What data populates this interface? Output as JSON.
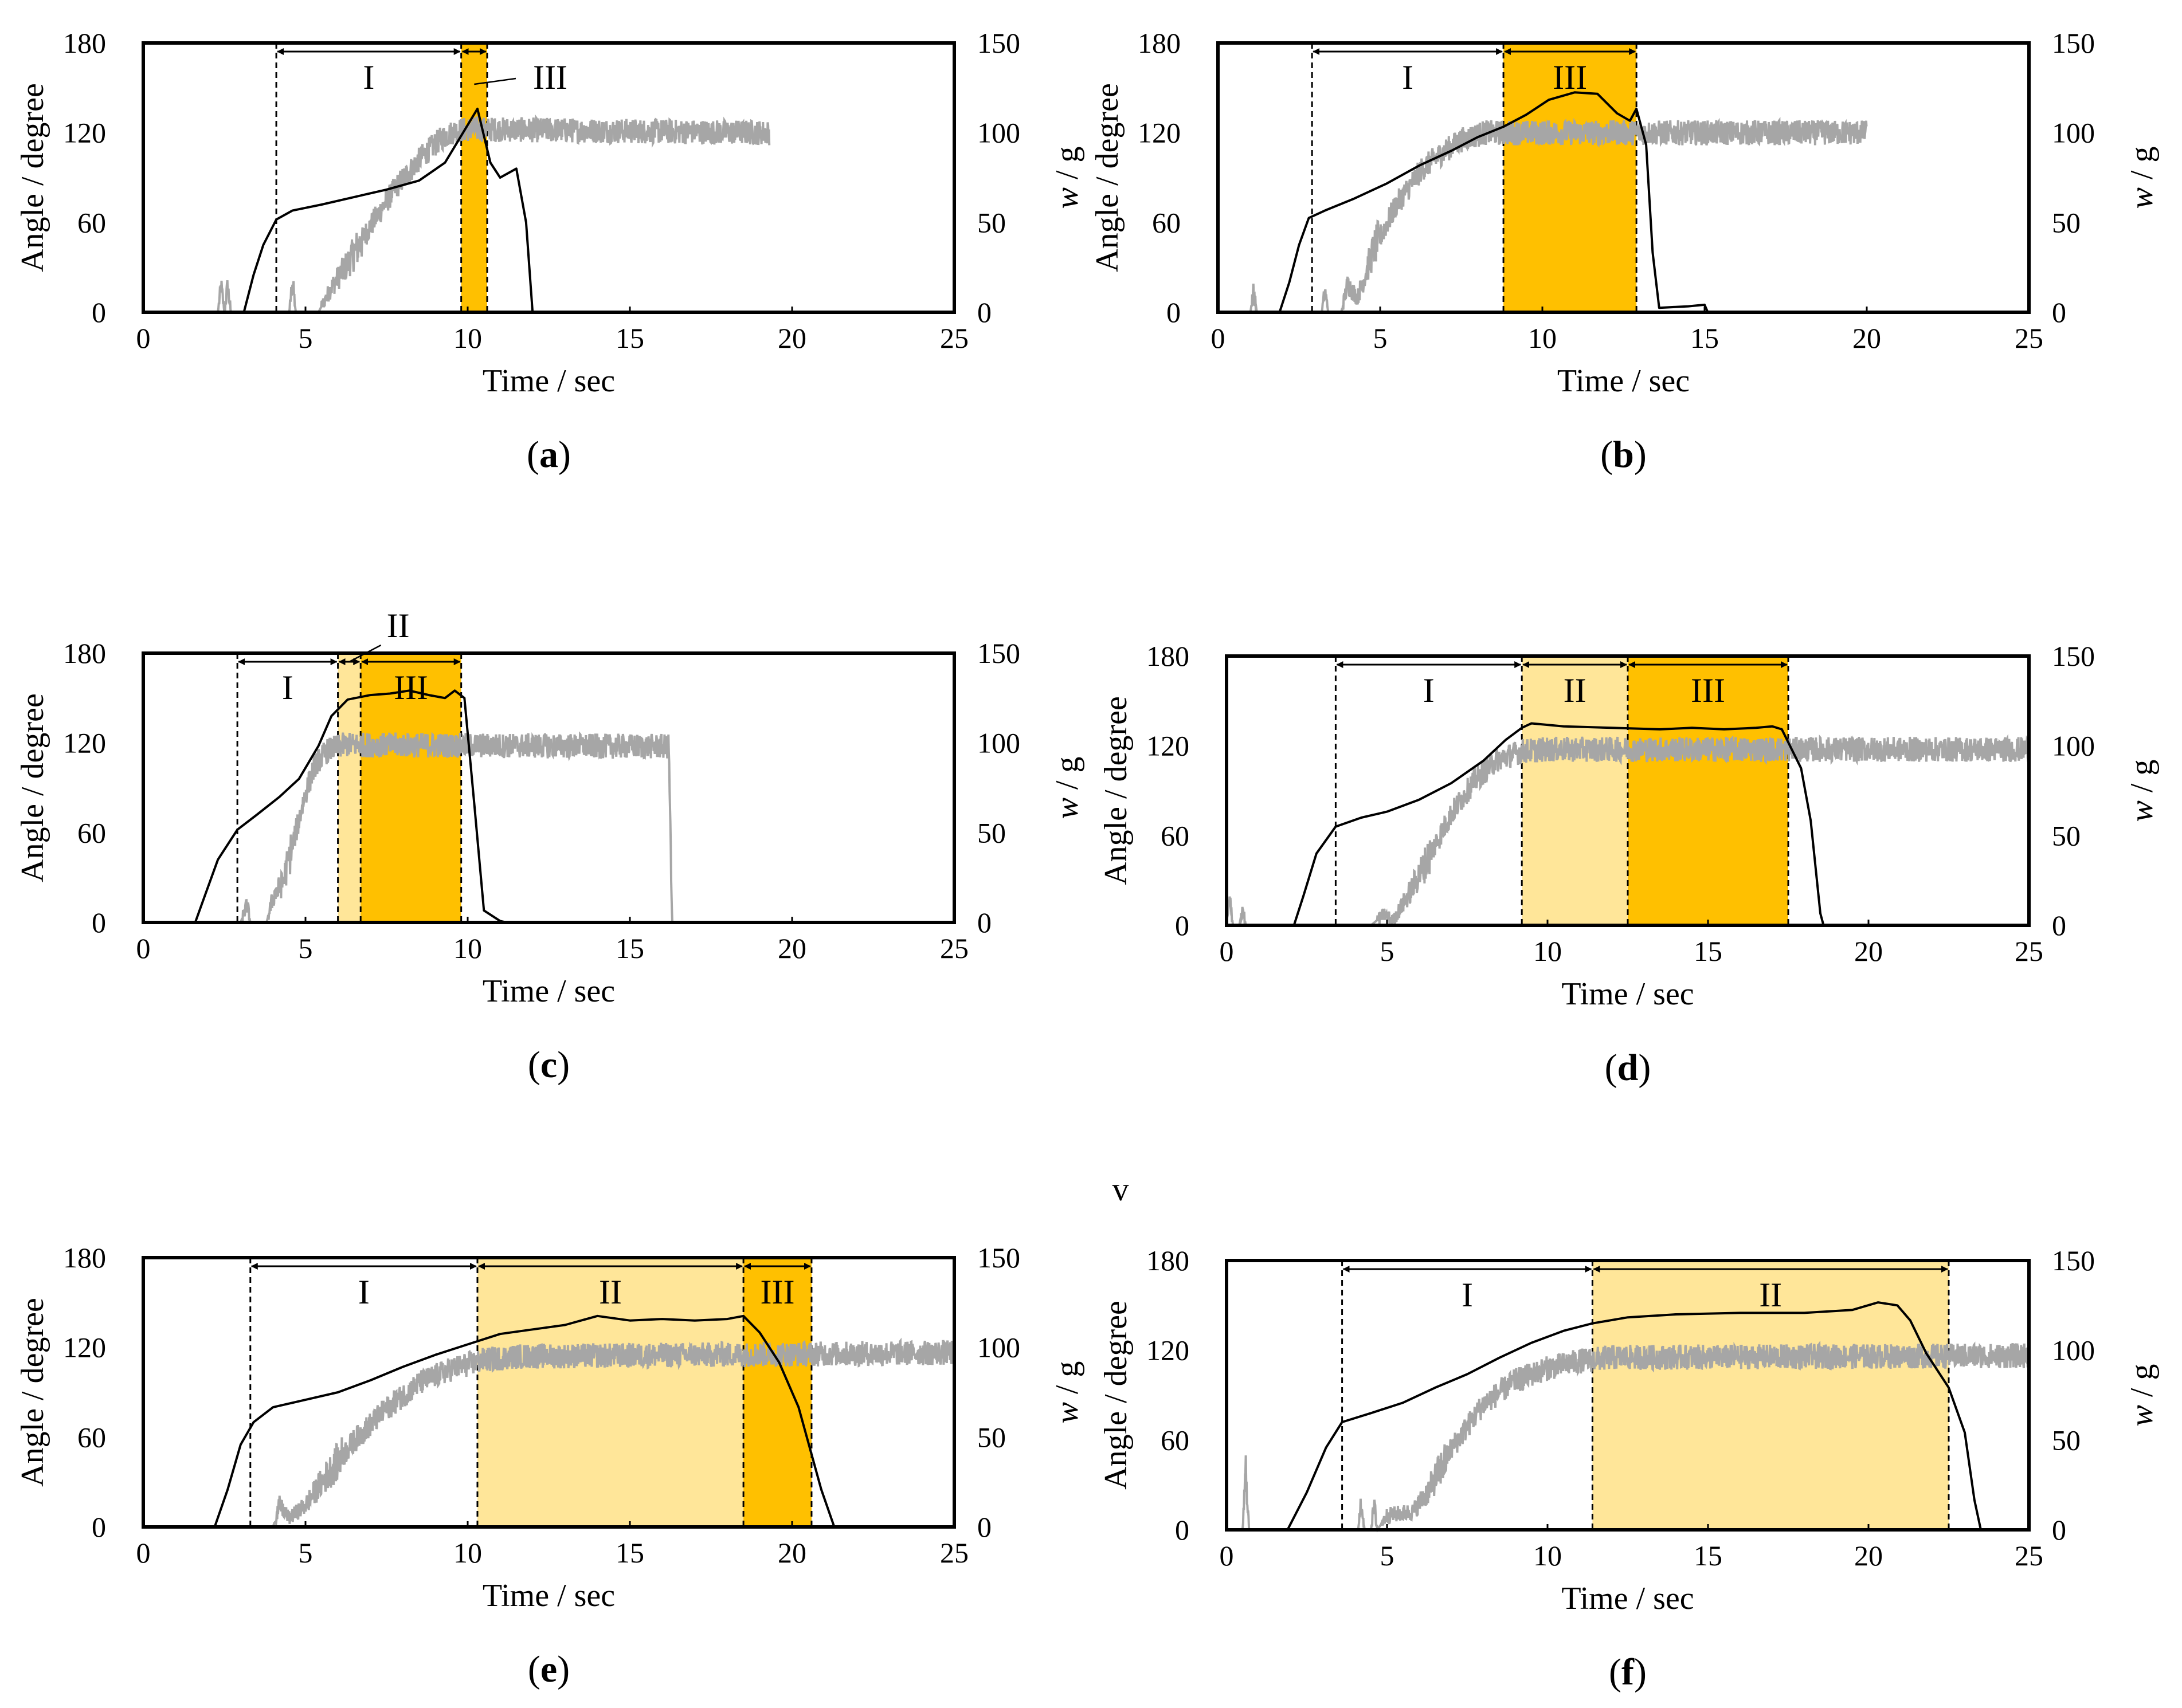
{
  "figure": {
    "center_label": "v",
    "colors": {
      "angle_line": "#000000",
      "weight_line": "#a6a6a6",
      "phase_II_fill": "#ffe699",
      "phase_III_fill": "#ffc000",
      "axis": "#000000"
    }
  },
  "chart_data": [
    {
      "panel": "(a)",
      "type": "line",
      "xlabel": "Time / sec",
      "ylabel_left": "Angle / degree",
      "ylabel_right": "w / g",
      "xlim": [
        0,
        25
      ],
      "ylim_left": [
        0,
        180
      ],
      "ylim_right": [
        0,
        150
      ],
      "xticks": [
        0,
        5,
        10,
        15,
        20,
        25
      ],
      "yticks_left": [
        0,
        60,
        120,
        180
      ],
      "yticks_right": [
        0,
        50,
        100,
        150
      ],
      "phases": [
        {
          "label": "I",
          "start": 4.1,
          "end": 9.8,
          "shaded": false
        },
        {
          "label": "III",
          "start": 9.8,
          "end": 10.6,
          "shaded": true,
          "level": "III"
        }
      ],
      "angle_series": [
        [
          0,
          0
        ],
        [
          3.1,
          0
        ],
        [
          3.4,
          25
        ],
        [
          3.7,
          45
        ],
        [
          4.1,
          62
        ],
        [
          4.6,
          68
        ],
        [
          5.5,
          72
        ],
        [
          6.5,
          77
        ],
        [
          7.5,
          82
        ],
        [
          8.5,
          88
        ],
        [
          9.3,
          100
        ],
        [
          9.8,
          118
        ],
        [
          10.3,
          136
        ],
        [
          10.7,
          100
        ],
        [
          11.0,
          90
        ],
        [
          11.5,
          96
        ],
        [
          11.8,
          60
        ],
        [
          12.0,
          0
        ],
        [
          25,
          0
        ]
      ],
      "angle_end": 12.0,
      "weight_series": [
        [
          0,
          0
        ],
        [
          2.3,
          0
        ],
        [
          2.4,
          15
        ],
        [
          2.5,
          0
        ],
        [
          2.6,
          15
        ],
        [
          2.7,
          0
        ],
        [
          4.5,
          0
        ],
        [
          4.6,
          18
        ],
        [
          4.7,
          0
        ],
        [
          5.4,
          0
        ],
        [
          5.8,
          14
        ],
        [
          6.3,
          27
        ],
        [
          7.0,
          48
        ],
        [
          7.8,
          70
        ],
        [
          8.6,
          87
        ],
        [
          9.2,
          97
        ],
        [
          9.6,
          101
        ],
        [
          10,
          102
        ],
        [
          19.3,
          100
        ]
      ],
      "weight_end": 19.3
    },
    {
      "panel": "(b)",
      "type": "line",
      "xlabel": "Time / sec",
      "ylabel_left": "Angle / degree",
      "ylabel_right": "w / g",
      "xlim": [
        0,
        25
      ],
      "ylim_left": [
        0,
        180
      ],
      "ylim_right": [
        0,
        150
      ],
      "xticks": [
        0,
        5,
        10,
        15,
        20,
        25
      ],
      "yticks_left": [
        0,
        60,
        120,
        180
      ],
      "yticks_right": [
        0,
        50,
        100,
        150
      ],
      "phases": [
        {
          "label": "I",
          "start": 2.9,
          "end": 8.8,
          "shaded": false
        },
        {
          "label": "III",
          "start": 8.8,
          "end": 12.9,
          "shaded": true,
          "level": "III"
        }
      ],
      "angle_series": [
        [
          0,
          0
        ],
        [
          1.9,
          0
        ],
        [
          2.2,
          20
        ],
        [
          2.5,
          45
        ],
        [
          2.8,
          63
        ],
        [
          3.3,
          68
        ],
        [
          4.2,
          76
        ],
        [
          5.2,
          86
        ],
        [
          6.2,
          98
        ],
        [
          7.2,
          108
        ],
        [
          8.0,
          117
        ],
        [
          8.8,
          124
        ],
        [
          9.5,
          132
        ],
        [
          10.2,
          142
        ],
        [
          11.0,
          147
        ],
        [
          11.7,
          146
        ],
        [
          12.3,
          133
        ],
        [
          12.7,
          128
        ],
        [
          12.9,
          136
        ],
        [
          13.2,
          112
        ],
        [
          13.4,
          40
        ],
        [
          13.6,
          3
        ],
        [
          14.5,
          4
        ],
        [
          15.0,
          5
        ],
        [
          15.1,
          0
        ],
        [
          25,
          0
        ]
      ],
      "angle_end": 15.1,
      "weight_series": [
        [
          0,
          0
        ],
        [
          1.0,
          0
        ],
        [
          1.1,
          12
        ],
        [
          1.2,
          0
        ],
        [
          3.2,
          0
        ],
        [
          3.3,
          12
        ],
        [
          3.4,
          0
        ],
        [
          3.8,
          0
        ],
        [
          4.0,
          16
        ],
        [
          4.3,
          8
        ],
        [
          4.8,
          35
        ],
        [
          5.5,
          60
        ],
        [
          6.3,
          80
        ],
        [
          7.0,
          90
        ],
        [
          7.5,
          96
        ],
        [
          8.2,
          100
        ],
        [
          20,
          100
        ]
      ],
      "weight_end": 20.0
    },
    {
      "panel": "(c)",
      "type": "line",
      "xlabel": "Time / sec",
      "ylabel_left": "Angle / degree",
      "ylabel_right": "w / g",
      "xlim": [
        0,
        25
      ],
      "ylim_left": [
        0,
        180
      ],
      "ylim_right": [
        0,
        150
      ],
      "xticks": [
        0,
        5,
        10,
        15,
        20,
        25
      ],
      "yticks_left": [
        0,
        60,
        120,
        180
      ],
      "yticks_right": [
        0,
        50,
        100,
        150
      ],
      "phases": [
        {
          "label": "I",
          "start": 2.9,
          "end": 6.0,
          "shaded": false
        },
        {
          "label": "II",
          "start": 6.0,
          "end": 6.7,
          "shaded": true,
          "level": "II"
        },
        {
          "label": "III",
          "start": 6.7,
          "end": 9.8,
          "shaded": true,
          "level": "III"
        }
      ],
      "angle_series": [
        [
          0,
          0
        ],
        [
          1.6,
          0
        ],
        [
          1.9,
          18
        ],
        [
          2.3,
          42
        ],
        [
          2.9,
          62
        ],
        [
          3.5,
          72
        ],
        [
          4.2,
          84
        ],
        [
          4.8,
          96
        ],
        [
          5.4,
          118
        ],
        [
          5.8,
          138
        ],
        [
          6.3,
          149
        ],
        [
          7.0,
          152
        ],
        [
          7.6,
          153
        ],
        [
          8.2,
          155
        ],
        [
          8.8,
          152
        ],
        [
          9.3,
          150
        ],
        [
          9.6,
          155
        ],
        [
          9.9,
          150
        ],
        [
          10.2,
          80
        ],
        [
          10.5,
          8
        ],
        [
          11.0,
          1
        ],
        [
          11.2,
          0
        ],
        [
          25,
          0
        ]
      ],
      "angle_end": 11.2,
      "weight_series": [
        [
          0,
          0
        ],
        [
          3.0,
          0
        ],
        [
          3.2,
          10
        ],
        [
          3.3,
          0
        ],
        [
          3.8,
          0
        ],
        [
          4.0,
          14
        ],
        [
          4.3,
          22
        ],
        [
          4.7,
          50
        ],
        [
          5.0,
          72
        ],
        [
          5.3,
          88
        ],
        [
          5.7,
          96
        ],
        [
          6.2,
          99
        ],
        [
          16.2,
          98
        ],
        [
          16.3,
          0
        ],
        [
          17.5,
          0
        ]
      ],
      "weight_end": 17.5
    },
    {
      "panel": "(d)",
      "type": "line",
      "xlabel": "Time / sec",
      "ylabel_left": "Angle / degree",
      "ylabel_right": "w / g",
      "xlim": [
        0,
        25
      ],
      "ylim_left": [
        0,
        180
      ],
      "ylim_right": [
        0,
        150
      ],
      "xticks": [
        0,
        5,
        10,
        15,
        20,
        25
      ],
      "yticks_left": [
        0,
        60,
        120,
        180
      ],
      "yticks_right": [
        0,
        50,
        100,
        150
      ],
      "phases": [
        {
          "label": "I",
          "start": 3.4,
          "end": 9.2,
          "shaded": false
        },
        {
          "label": "II",
          "start": 9.2,
          "end": 12.5,
          "shaded": true,
          "level": "II"
        },
        {
          "label": "III",
          "start": 12.5,
          "end": 17.5,
          "shaded": true,
          "level": "III"
        }
      ],
      "angle_series": [
        [
          0,
          0
        ],
        [
          2.1,
          0
        ],
        [
          2.4,
          20
        ],
        [
          2.8,
          48
        ],
        [
          3.4,
          66
        ],
        [
          4.2,
          72
        ],
        [
          5.0,
          76
        ],
        [
          6.0,
          84
        ],
        [
          7.0,
          95
        ],
        [
          8.0,
          110
        ],
        [
          8.7,
          124
        ],
        [
          9.2,
          132
        ],
        [
          9.5,
          135
        ],
        [
          10.5,
          133
        ],
        [
          12,
          132
        ],
        [
          13.5,
          131
        ],
        [
          14.5,
          132
        ],
        [
          15.5,
          131
        ],
        [
          16.5,
          132
        ],
        [
          17.0,
          133
        ],
        [
          17.3,
          131
        ],
        [
          17.6,
          118
        ],
        [
          17.9,
          105
        ],
        [
          18.2,
          70
        ],
        [
          18.5,
          8
        ],
        [
          18.6,
          0
        ],
        [
          25,
          0
        ]
      ],
      "angle_end": 18.6,
      "weight_series": [
        [
          0,
          0
        ],
        [
          0.1,
          14
        ],
        [
          0.2,
          0
        ],
        [
          0.4,
          0
        ],
        [
          0.5,
          10
        ],
        [
          0.6,
          0
        ],
        [
          4.5,
          0
        ],
        [
          4.9,
          6
        ],
        [
          5.2,
          3
        ],
        [
          5.7,
          18
        ],
        [
          6.3,
          38
        ],
        [
          7.0,
          62
        ],
        [
          7.7,
          80
        ],
        [
          8.4,
          92
        ],
        [
          9.2,
          97
        ],
        [
          10,
          98
        ],
        [
          25,
          98
        ]
      ],
      "weight_end": 25
    },
    {
      "panel": "(e)",
      "type": "line",
      "xlabel": "Time / sec",
      "ylabel_left": "Angle / degree",
      "ylabel_right": "w / g",
      "xlim": [
        0,
        25
      ],
      "ylim_left": [
        0,
        180
      ],
      "ylim_right": [
        0,
        150
      ],
      "xticks": [
        0,
        5,
        10,
        15,
        20,
        25
      ],
      "yticks_left": [
        0,
        60,
        120,
        180
      ],
      "yticks_right": [
        0,
        50,
        100,
        150
      ],
      "phases": [
        {
          "label": "I",
          "start": 3.3,
          "end": 10.3,
          "shaded": false
        },
        {
          "label": "II",
          "start": 10.3,
          "end": 18.5,
          "shaded": true,
          "level": "II"
        },
        {
          "label": "III",
          "start": 18.5,
          "end": 20.6,
          "shaded": true,
          "level": "III"
        }
      ],
      "angle_series": [
        [
          0,
          0
        ],
        [
          2.2,
          0
        ],
        [
          2.6,
          25
        ],
        [
          3.0,
          55
        ],
        [
          3.4,
          70
        ],
        [
          4.0,
          80
        ],
        [
          5.0,
          85
        ],
        [
          6.0,
          90
        ],
        [
          7.0,
          98
        ],
        [
          8.0,
          107
        ],
        [
          9.0,
          115
        ],
        [
          10.0,
          122
        ],
        [
          11.0,
          129
        ],
        [
          12.0,
          132
        ],
        [
          13.0,
          135
        ],
        [
          14.0,
          141
        ],
        [
          15.0,
          138
        ],
        [
          16.0,
          139
        ],
        [
          17.0,
          138
        ],
        [
          18.0,
          139
        ],
        [
          18.5,
          141
        ],
        [
          19.0,
          130
        ],
        [
          19.6,
          110
        ],
        [
          20.2,
          80
        ],
        [
          20.9,
          25
        ],
        [
          21.3,
          0
        ],
        [
          25,
          0
        ]
      ],
      "angle_end": 21.3,
      "weight_series": [
        [
          0,
          0
        ],
        [
          4.0,
          0
        ],
        [
          4.2,
          12
        ],
        [
          4.5,
          5
        ],
        [
          5.0,
          12
        ],
        [
          5.5,
          25
        ],
        [
          6.5,
          48
        ],
        [
          7.5,
          66
        ],
        [
          8.5,
          80
        ],
        [
          9.5,
          88
        ],
        [
          10.5,
          93
        ],
        [
          11.5,
          95
        ],
        [
          25,
          97
        ]
      ],
      "weight_end": 25
    },
    {
      "panel": "(f)",
      "type": "line",
      "xlabel": "Time / sec",
      "ylabel_left": "Angle / degree",
      "ylabel_right": "w / g",
      "xlim": [
        0,
        25
      ],
      "ylim_left": [
        0,
        180
      ],
      "ylim_right": [
        0,
        150
      ],
      "xticks": [
        0,
        5,
        10,
        15,
        20,
        25
      ],
      "yticks_left": [
        0,
        60,
        120,
        180
      ],
      "yticks_right": [
        0,
        50,
        100,
        150
      ],
      "phases": [
        {
          "label": "I",
          "start": 3.6,
          "end": 11.4,
          "shaded": false
        },
        {
          "label": "II",
          "start": 11.4,
          "end": 22.5,
          "shaded": true,
          "level": "II"
        }
      ],
      "angle_series": [
        [
          0,
          0
        ],
        [
          1.9,
          0
        ],
        [
          2.5,
          25
        ],
        [
          3.1,
          55
        ],
        [
          3.6,
          72
        ],
        [
          4.5,
          78
        ],
        [
          5.5,
          85
        ],
        [
          6.5,
          95
        ],
        [
          7.5,
          104
        ],
        [
          8.5,
          115
        ],
        [
          9.5,
          125
        ],
        [
          10.5,
          133
        ],
        [
          11.4,
          138
        ],
        [
          12.5,
          142
        ],
        [
          14,
          144
        ],
        [
          16,
          145
        ],
        [
          18,
          145
        ],
        [
          19.5,
          147
        ],
        [
          20.3,
          152
        ],
        [
          20.9,
          150
        ],
        [
          21.3,
          140
        ],
        [
          21.8,
          118
        ],
        [
          22.5,
          95
        ],
        [
          23.0,
          65
        ],
        [
          23.3,
          20
        ],
        [
          23.5,
          0
        ],
        [
          25,
          0
        ]
      ],
      "angle_end": 23.5,
      "weight_series": [
        [
          0,
          0
        ],
        [
          0.5,
          0
        ],
        [
          0.6,
          34
        ],
        [
          0.7,
          0
        ],
        [
          4.1,
          0
        ],
        [
          4.2,
          16
        ],
        [
          4.3,
          0
        ],
        [
          4.5,
          0
        ],
        [
          4.6,
          14
        ],
        [
          4.7,
          0
        ],
        [
          5.0,
          8
        ],
        [
          5.8,
          10
        ],
        [
          6.3,
          22
        ],
        [
          7.0,
          45
        ],
        [
          8.0,
          70
        ],
        [
          9.0,
          83
        ],
        [
          10.0,
          90
        ],
        [
          11.0,
          94
        ],
        [
          12.0,
          96
        ],
        [
          25,
          97
        ]
      ],
      "weight_end": 25
    }
  ]
}
